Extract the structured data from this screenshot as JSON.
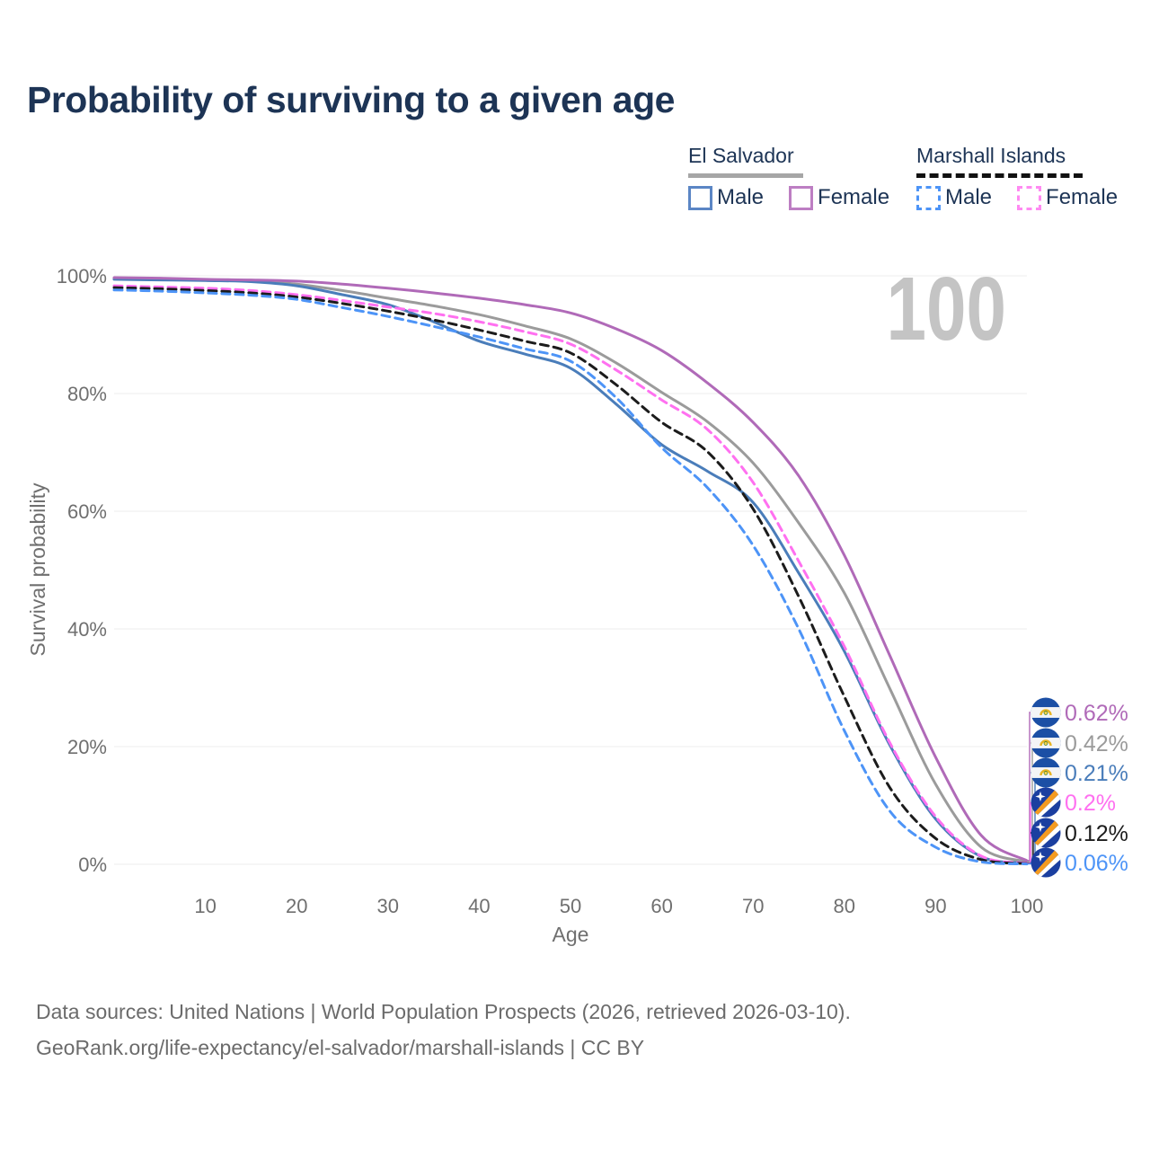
{
  "title": "Probability of surviving to a given age",
  "watermark_age": "100",
  "legend": {
    "groups": [
      {
        "label": "El Salvador",
        "line_style": "solid",
        "underline_color": "#a6a6a6",
        "items": [
          {
            "label": "Male",
            "swatch_color": "#5b86c5",
            "swatch_style": "solid"
          },
          {
            "label": "Female",
            "swatch_color": "#bd7ec3",
            "swatch_style": "solid"
          }
        ]
      },
      {
        "label": "Marshall Islands",
        "line_style": "dashed",
        "underline_color": "#111111",
        "items": [
          {
            "label": "Male",
            "swatch_color": "#4d94f7",
            "swatch_style": "dashed"
          },
          {
            "label": "Female",
            "swatch_color": "#ff8af2",
            "swatch_style": "dashed"
          }
        ]
      }
    ]
  },
  "chart_data": {
    "type": "line",
    "title": "Probability of surviving to a given age",
    "xlabel": "Age",
    "ylabel": "Survival probability",
    "xlim": [
      0,
      100
    ],
    "ylim": [
      0,
      100
    ],
    "x_ticks": [
      10,
      20,
      30,
      40,
      50,
      60,
      70,
      80,
      90,
      100
    ],
    "y_ticks": [
      0,
      20,
      40,
      60,
      80,
      100
    ],
    "y_tick_suffix": "%",
    "grid": "horizontal",
    "x": [
      0,
      5,
      10,
      15,
      20,
      25,
      30,
      35,
      40,
      45,
      50,
      55,
      60,
      65,
      70,
      75,
      80,
      85,
      90,
      95,
      100
    ],
    "series": [
      {
        "name": "El Salvador Total",
        "country": "El Salvador",
        "sex": "Total",
        "color": "#9b9b9b",
        "dash": false,
        "end_label": "0.42%",
        "flag": "el-salvador",
        "values": [
          99.5,
          99.4,
          99.3,
          99.1,
          98.6,
          97.5,
          96.2,
          94.9,
          93.4,
          91.5,
          89.3,
          85.2,
          80.2,
          75.2,
          68.2,
          58.0,
          46.1,
          29.8,
          13.6,
          2.9,
          0.42
        ]
      },
      {
        "name": "El Salvador Male",
        "country": "El Salvador",
        "sex": "Male",
        "color": "#4a7dba",
        "dash": false,
        "end_label": "0.21%",
        "flag": "el-salvador",
        "values": [
          99.4,
          99.3,
          99.2,
          99.0,
          98.3,
          96.8,
          95.1,
          92.2,
          88.9,
          86.7,
          84.3,
          78.2,
          71.3,
          66.8,
          61.5,
          49.5,
          36.2,
          20.2,
          7.7,
          1.3,
          0.21
        ]
      },
      {
        "name": "El Salvador Female",
        "country": "El Salvador",
        "sex": "Female",
        "color": "#b06ab8",
        "dash": false,
        "end_label": "0.62%",
        "flag": "el-salvador",
        "values": [
          99.7,
          99.6,
          99.4,
          99.3,
          99.1,
          98.6,
          97.9,
          97.1,
          96.2,
          95.1,
          93.7,
          91.0,
          87.3,
          81.8,
          75.1,
          66.0,
          52.5,
          35.4,
          18.2,
          4.9,
          0.62
        ]
      },
      {
        "name": "Marshall Islands Female",
        "country": "Marshall Islands",
        "sex": "Female",
        "color": "#ff70f0",
        "dash": true,
        "end_label": "0.2%",
        "flag": "marshall-islands",
        "values": [
          98.3,
          98.1,
          97.9,
          97.5,
          96.8,
          95.8,
          94.7,
          93.6,
          92.2,
          90.5,
          88.4,
          84.0,
          78.9,
          73.9,
          64.9,
          51.5,
          37.0,
          20.6,
          8.1,
          1.4,
          0.2
        ]
      },
      {
        "name": "Marshall Islands Total",
        "country": "Marshall Islands",
        "sex": "Total",
        "color": "#1c1c1c",
        "dash": true,
        "end_label": "0.12%",
        "flag": "marshall-islands",
        "values": [
          98.0,
          97.8,
          97.5,
          97.1,
          96.4,
          95.3,
          94.0,
          92.5,
          90.8,
          88.9,
          86.9,
          81.5,
          75.1,
          70.1,
          60.4,
          45.5,
          28.5,
          13.0,
          4.4,
          0.8,
          0.12
        ]
      },
      {
        "name": "Marshall Islands Male",
        "country": "Marshall Islands",
        "sex": "Male",
        "color": "#4d94f7",
        "dash": true,
        "end_label": "0.06%",
        "flag": "marshall-islands",
        "values": [
          97.6,
          97.4,
          97.1,
          96.7,
          96.0,
          94.6,
          93.1,
          91.4,
          89.6,
          87.6,
          85.5,
          79.3,
          70.8,
          64.0,
          54.2,
          40.0,
          22.7,
          9.0,
          2.9,
          0.4,
          0.06
        ]
      }
    ],
    "end_label_order_top_to_bottom": [
      "0.62%",
      "0.42%",
      "0.21%",
      "0.2%",
      "0.12%",
      "0.06%"
    ]
  },
  "footer": {
    "line1": "Data sources: United Nations | World Population Prospects (2026, retrieved 2026-03-10).",
    "line2": "GeoRank.org/life-expectancy/el-salvador/marshall-islands | CC BY"
  }
}
